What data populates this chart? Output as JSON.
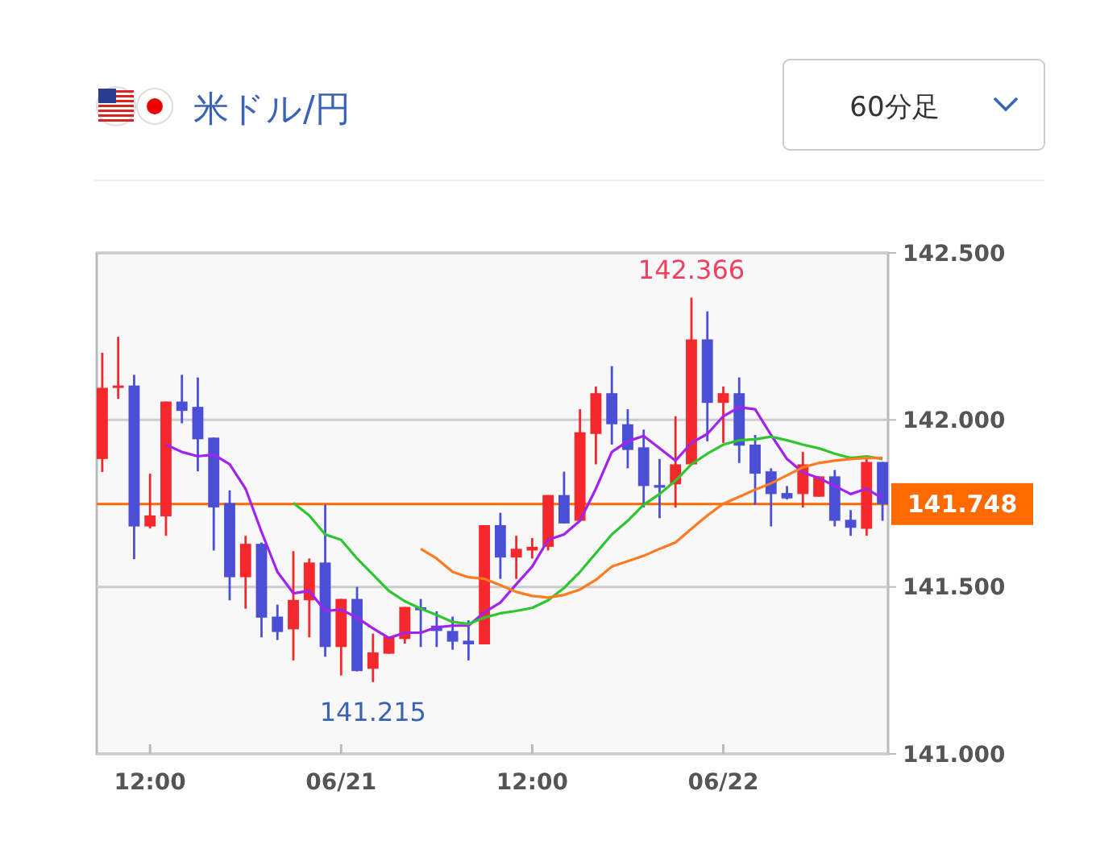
{
  "chart_data": {
    "type": "candlestick",
    "title": "米ドル/円",
    "categories": [
      null,
      null,
      null,
      "12:00",
      null,
      null,
      null,
      null,
      null,
      null,
      null,
      null,
      null,
      null,
      null,
      "06/21",
      null,
      null,
      null,
      null,
      null,
      null,
      null,
      null,
      null,
      null,
      null,
      "12:00",
      null,
      null,
      null,
      null,
      null,
      null,
      null,
      null,
      null,
      null,
      null,
      "06/22",
      null,
      null,
      null,
      null,
      null,
      null,
      null,
      null,
      null,
      null
    ],
    "ohlc": [
      [
        141.883,
        142.201,
        141.844,
        142.096
      ],
      [
        142.097,
        142.249,
        142.063,
        142.103
      ],
      [
        142.103,
        142.135,
        141.583,
        141.681
      ],
      [
        141.681,
        141.839,
        141.675,
        141.714
      ],
      [
        141.711,
        142.055,
        141.653,
        142.055
      ],
      [
        142.055,
        142.135,
        141.99,
        142.027
      ],
      [
        142.039,
        142.127,
        141.846,
        141.942
      ],
      [
        141.947,
        141.947,
        141.609,
        141.738
      ],
      [
        141.751,
        141.789,
        141.46,
        141.529
      ],
      [
        141.529,
        141.653,
        141.435,
        141.629
      ],
      [
        141.629,
        141.633,
        141.349,
        141.408
      ],
      [
        141.411,
        141.447,
        141.341,
        141.365
      ],
      [
        141.373,
        141.607,
        141.28,
        141.461
      ],
      [
        141.46,
        141.585,
        141.349,
        141.573
      ],
      [
        141.573,
        141.746,
        141.291,
        141.32
      ],
      [
        141.32,
        141.464,
        141.235,
        141.464
      ],
      [
        141.464,
        141.5,
        141.247,
        141.248
      ],
      [
        141.255,
        141.36,
        141.215,
        141.304
      ],
      [
        141.3,
        141.352,
        141.3,
        141.352
      ],
      [
        141.344,
        141.44,
        141.33,
        141.44
      ],
      [
        141.439,
        141.464,
        141.32,
        141.43
      ],
      [
        141.384,
        141.427,
        141.32,
        141.368
      ],
      [
        141.368,
        141.411,
        141.312,
        141.336
      ],
      [
        141.339,
        141.4,
        141.28,
        141.328
      ],
      [
        141.328,
        141.685,
        141.328,
        141.685
      ],
      [
        141.685,
        141.722,
        141.524,
        141.588
      ],
      [
        141.588,
        141.653,
        141.524,
        141.614
      ],
      [
        141.609,
        141.646,
        141.585,
        141.62
      ],
      [
        141.62,
        141.775,
        141.609,
        141.775
      ],
      [
        141.775,
        141.845,
        141.69,
        141.69
      ],
      [
        141.698,
        142.032,
        141.698,
        141.963
      ],
      [
        141.958,
        142.1,
        141.867,
        142.08
      ],
      [
        142.08,
        142.161,
        141.926,
        141.987
      ],
      [
        141.987,
        142.032,
        141.855,
        141.91
      ],
      [
        141.918,
        141.971,
        141.738,
        141.802
      ],
      [
        141.805,
        141.883,
        141.706,
        141.797
      ],
      [
        141.807,
        142.011,
        141.738,
        141.867
      ],
      [
        141.867,
        142.366,
        141.867,
        142.241
      ],
      [
        142.241,
        142.325,
        141.936,
        142.051
      ],
      [
        142.051,
        142.1,
        141.931,
        142.08
      ],
      [
        142.08,
        142.127,
        141.871,
        141.923
      ],
      [
        141.926,
        141.955,
        141.746,
        141.839
      ],
      [
        141.846,
        141.855,
        141.681,
        141.778
      ],
      [
        141.781,
        141.802,
        141.762,
        141.765
      ],
      [
        141.778,
        141.904,
        141.738,
        141.867
      ],
      [
        141.77,
        141.831,
        141.77,
        141.831
      ],
      [
        141.831,
        141.85,
        141.681,
        141.698
      ],
      [
        141.701,
        141.73,
        141.653,
        141.677
      ],
      [
        141.674,
        141.883,
        141.653,
        141.874
      ],
      [
        141.874,
        141.874,
        141.698,
        141.748
      ]
    ],
    "colors": [
      "#f5282c",
      "#f5282c",
      "#4a4fd6",
      "#f5282c",
      "#f5282c",
      "#4a4fd6",
      "#4a4fd6",
      "#4a4fd6",
      "#4a4fd6",
      "#f5282c",
      "#4a4fd6",
      "#4a4fd6",
      "#f5282c",
      "#f5282c",
      "#4a4fd6",
      "#f5282c",
      "#4a4fd6",
      "#f5282c",
      "#f5282c",
      "#f5282c",
      "#4a4fd6",
      "#4a4fd6",
      "#4a4fd6",
      "#4a4fd6",
      "#f5282c",
      "#4a4fd6",
      "#f5282c",
      "#f5282c",
      "#f5282c",
      "#4a4fd6",
      "#f5282c",
      "#f5282c",
      "#4a4fd6",
      "#4a4fd6",
      "#4a4fd6",
      "#4a4fd6",
      "#f5282c",
      "#f5282c",
      "#4a4fd6",
      "#f5282c",
      "#4a4fd6",
      "#4a4fd6",
      "#4a4fd6",
      "#4a4fd6",
      "#f5282c",
      "#f5282c",
      "#4a4fd6",
      "#4a4fd6",
      "#f5282c",
      "#4a4fd6"
    ],
    "series": [
      {
        "type": "line",
        "color": "#a223f0",
        "values": [
          null,
          null,
          null,
          null,
          141.926,
          141.904,
          141.891,
          141.896,
          141.867,
          141.794,
          141.665,
          141.545,
          141.481,
          141.488,
          141.428,
          141.432,
          141.408,
          141.376,
          141.347,
          141.363,
          141.363,
          141.379,
          141.384,
          141.384,
          141.424,
          141.453,
          141.508,
          141.561,
          141.641,
          141.657,
          141.698,
          141.794,
          141.904,
          141.936,
          141.952,
          141.915,
          141.878,
          141.931,
          141.958,
          142.011,
          142.038,
          142.032,
          141.955,
          141.883,
          141.843,
          141.826,
          141.802,
          141.778,
          141.794,
          141.765
        ]
      },
      {
        "type": "line",
        "color": "#2ec62e",
        "values": [
          null,
          null,
          null,
          null,
          null,
          null,
          null,
          null,
          null,
          null,
          null,
          null,
          141.751,
          141.714,
          141.657,
          141.641,
          141.585,
          141.537,
          141.488,
          141.457,
          141.435,
          141.416,
          141.395,
          141.389,
          141.408,
          141.421,
          141.428,
          141.437,
          141.46,
          141.497,
          141.545,
          141.601,
          141.657,
          141.698,
          141.746,
          141.778,
          141.818,
          141.867,
          141.899,
          141.926,
          141.939,
          141.942,
          141.95,
          141.939,
          141.926,
          141.915,
          141.899,
          141.886,
          141.891,
          141.883
        ]
      },
      {
        "type": "line",
        "color": "#ff7a21",
        "values": [
          null,
          null,
          null,
          null,
          null,
          null,
          null,
          null,
          null,
          null,
          null,
          null,
          null,
          null,
          null,
          null,
          null,
          null,
          null,
          null,
          141.614,
          141.585,
          141.545,
          141.529,
          141.524,
          141.505,
          141.485,
          141.473,
          141.468,
          141.476,
          141.492,
          141.521,
          141.561,
          141.577,
          141.593,
          141.614,
          141.633,
          141.674,
          141.714,
          141.749,
          141.77,
          141.791,
          141.81,
          141.834,
          141.858,
          141.871,
          141.878,
          141.883,
          141.886,
          141.886
        ]
      }
    ],
    "ylim": [
      141,
      142.5
    ],
    "yticks": [
      {
        "value": 141,
        "label": "141.000"
      },
      {
        "value": 141.5,
        "label": "141.500"
      },
      {
        "value": 142,
        "label": "142.000"
      },
      {
        "value": 142.5,
        "label": "142.500"
      }
    ],
    "grid": "y",
    "ref_lines": [
      {
        "axis": "y",
        "value": 141.748,
        "label": "141.748",
        "color": "#ff6a00"
      }
    ],
    "annotations": [
      "60分足",
      {
        "text": "142.366",
        "y": 142.366
      },
      {
        "text": "141.215",
        "y": 141.215
      }
    ]
  }
}
